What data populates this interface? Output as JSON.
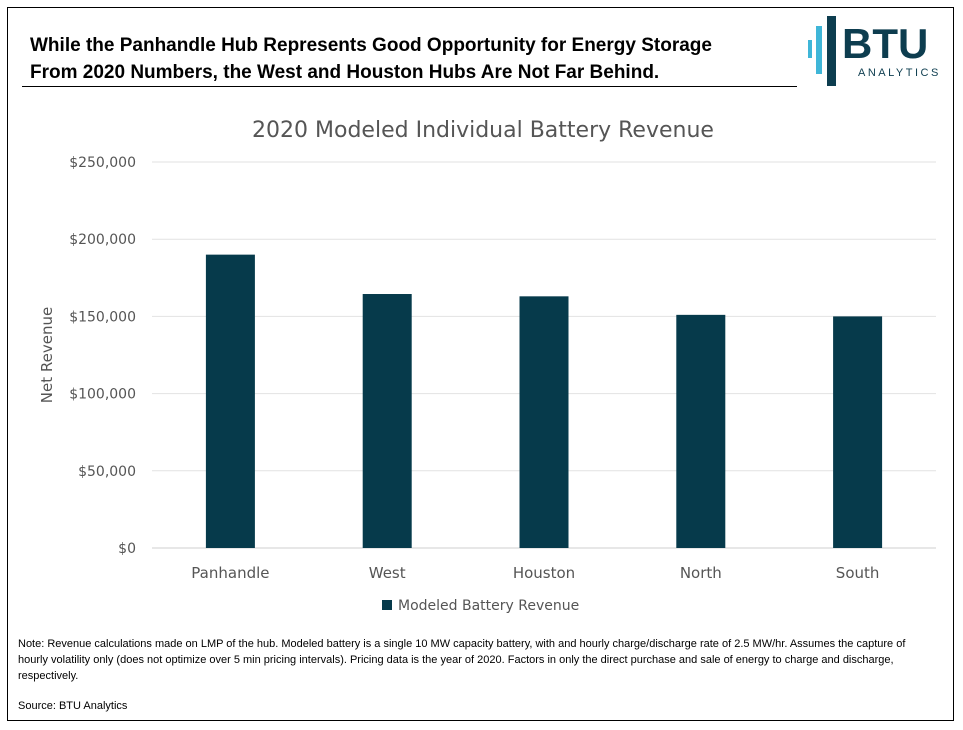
{
  "headline": {
    "line1": "While the Panhandle Hub Represents Good Opportunity for Energy Storage",
    "line2": "From 2020 Numbers, the West and Houston Hubs Are Not Far Behind."
  },
  "logo": {
    "word": "BTU",
    "sub": "ANALYTICS",
    "colors": {
      "accent": "#3fb6d8",
      "ink": "#0d3d4f"
    }
  },
  "chart_data": {
    "type": "bar",
    "title": "2020 Modeled Individual Battery Revenue",
    "categories": [
      "Panhandle",
      "West",
      "Houston",
      "North",
      "South"
    ],
    "series": [
      {
        "name": "Modeled Battery Revenue",
        "values": [
          190000,
          164500,
          163000,
          151000,
          150000
        ],
        "color": "#063a4b"
      }
    ],
    "xlabel": "",
    "ylabel": "Net Revenue",
    "ylim": [
      0,
      250000
    ],
    "yticks": [
      0,
      50000,
      100000,
      150000,
      200000,
      250000
    ],
    "ytick_labels": [
      "$0",
      "$50,000",
      "$100,000",
      "$150,000",
      "$200,000",
      "$250,000"
    ],
    "grid": true,
    "legend": "bottom"
  },
  "footnote": {
    "note": "Note: Revenue calculations made on LMP of the hub. Modeled battery is a single 10 MW capacity battery, with and hourly charge/discharge rate of 2.5 MW/hr. Assumes the capture of hourly volatility only (does not optimize over 5 min pricing intervals). Pricing data is the year of 2020. Factors in only the direct purchase and sale of energy to charge and discharge, respectively.",
    "source": "Source: BTU Analytics"
  }
}
